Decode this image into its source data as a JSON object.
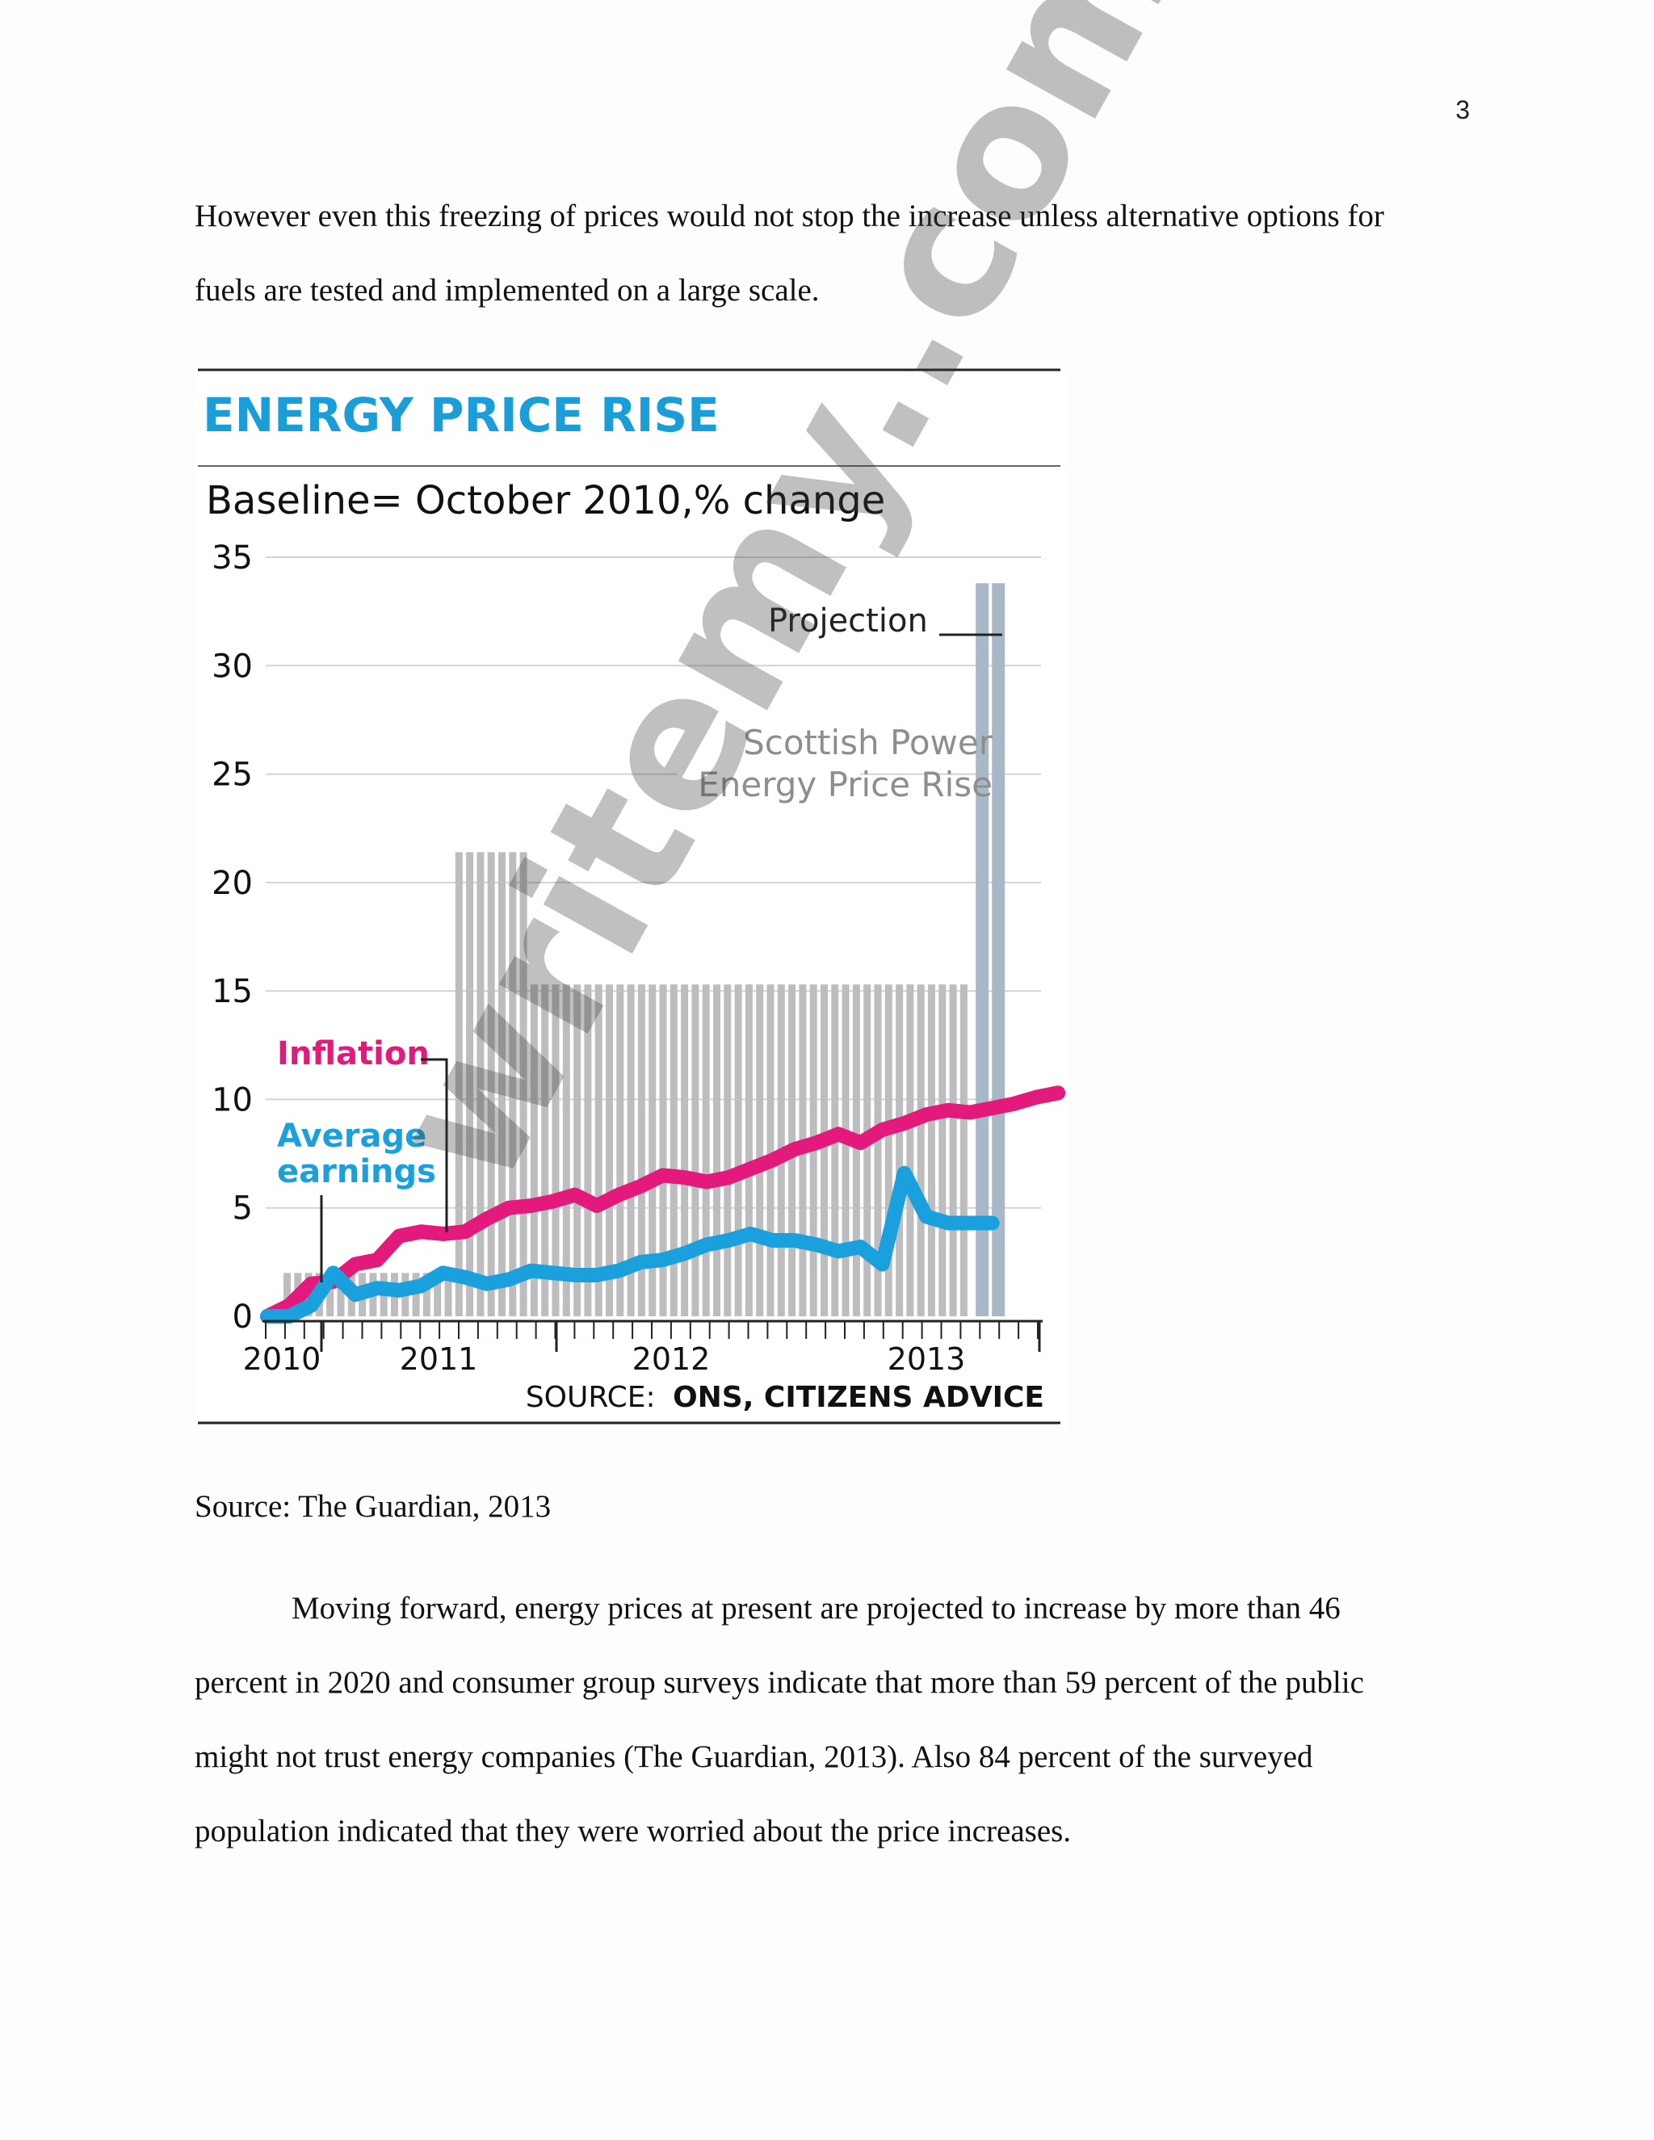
{
  "page_number": "3",
  "paragraph_1": {
    "lines": [
      "However even this freezing of prices would not stop the increase unless alternative options for",
      "fuels are tested and implemented on a large scale."
    ]
  },
  "chart_data": {
    "type": "bar",
    "title": "ENERGY PRICE RISE",
    "subtitle": "Baseline= October 2010,% change",
    "yticks": [
      "35",
      "30",
      "25",
      "20",
      "15",
      "10",
      "5",
      "0"
    ],
    "ylim": [
      0,
      35
    ],
    "x_labels": [
      "2010",
      "2011",
      "2012",
      "2013"
    ],
    "grid": true,
    "source_prefix": "SOURCE:",
    "source": "ONS, CITIZENS ADVICE",
    "annotations": {
      "projection": "Projection",
      "bar_label_1": "Scottish Power",
      "bar_label_2": "Energy Price Rise",
      "inflation": "Inflation",
      "earnings_1": "Average",
      "earnings_2": "earnings"
    },
    "colors": {
      "title": "#1a9ed9",
      "bars": "#bdbdbf",
      "projection_bars": "#a9b8c6",
      "inflation": "#e3197b",
      "earnings": "#1aa0dc",
      "axis": "#222222"
    },
    "bars": {
      "name": "Scottish Power Energy Price Rise",
      "x_index": [
        1,
        2,
        3,
        4,
        5,
        6,
        7,
        8,
        9,
        10,
        11,
        12,
        13,
        14,
        15,
        16,
        17,
        18,
        19,
        20,
        21,
        22,
        23,
        24,
        25,
        26,
        27,
        28,
        29,
        30,
        31,
        32,
        33,
        34,
        35,
        36,
        37,
        38,
        39,
        40,
        41,
        42,
        43,
        44,
        45,
        46,
        47,
        48,
        49,
        50,
        51,
        52,
        53,
        54,
        55,
        56,
        57,
        58,
        59,
        60,
        61,
        62,
        63,
        64
      ],
      "values": [
        2,
        2,
        2,
        2,
        2,
        2,
        2,
        2,
        2,
        2,
        2,
        2,
        2,
        2,
        2,
        2,
        21.4,
        21.4,
        21.4,
        21.4,
        21.4,
        21.4,
        21.4,
        15.3,
        15.3,
        15.3,
        15.3,
        15.3,
        15.3,
        15.3,
        15.3,
        15.3,
        15.3,
        15.3,
        15.3,
        15.3,
        15.3,
        15.3,
        15.3,
        15.3,
        15.3,
        15.3,
        15.3,
        15.3,
        15.3,
        15.3,
        15.3,
        15.3,
        15.3,
        15.3,
        15.3,
        15.3,
        15.3,
        15.3,
        15.3,
        15.3,
        15.3,
        15.3,
        15.3,
        15.3,
        15.3,
        15.3,
        15.3,
        15.3
      ],
      "note": "",
      "projection_values": [
        33.8,
        33.8
      ]
    },
    "series": [
      {
        "name": "Inflation",
        "values": [
          0,
          0.5,
          1.5,
          1.6,
          2.4,
          2.6,
          3.7,
          3.9,
          3.8,
          3.9,
          4.5,
          5.0,
          5.1,
          5.3,
          5.6,
          5.1,
          5.6,
          6.0,
          6.5,
          6.4,
          6.2,
          6.4,
          6.8,
          7.2,
          7.7,
          8.0,
          8.4,
          8.0,
          8.6,
          8.9,
          9.3,
          9.5,
          9.4,
          9.6,
          9.8,
          10.1,
          10.3
        ]
      },
      {
        "name": "Average earnings",
        "values": [
          0,
          0,
          0.5,
          2.0,
          1.0,
          1.3,
          1.2,
          1.4,
          2.0,
          1.8,
          1.5,
          1.7,
          2.1,
          2.0,
          1.9,
          1.9,
          2.1,
          2.5,
          2.6,
          2.9,
          3.3,
          3.5,
          3.8,
          3.5,
          3.5,
          3.3,
          3.0,
          3.2,
          2.4,
          6.6,
          4.6,
          4.3,
          4.3,
          4.3
        ]
      }
    ]
  },
  "bars_layout_ref": "",
  "caption": "Source: The Guardian, 2013",
  "paragraph_2": {
    "lines": [
      "Moving forward, energy prices at present are projected to increase by more than 46",
      "percent in 2020 and consumer group surveys indicate that more than 59 percent of the public",
      "might not trust energy companies (The Guardian, 2013). Also 84 percent of the surveyed",
      "population indicated that they were worried about the price increases."
    ]
  },
  "watermark": "writemy..com"
}
